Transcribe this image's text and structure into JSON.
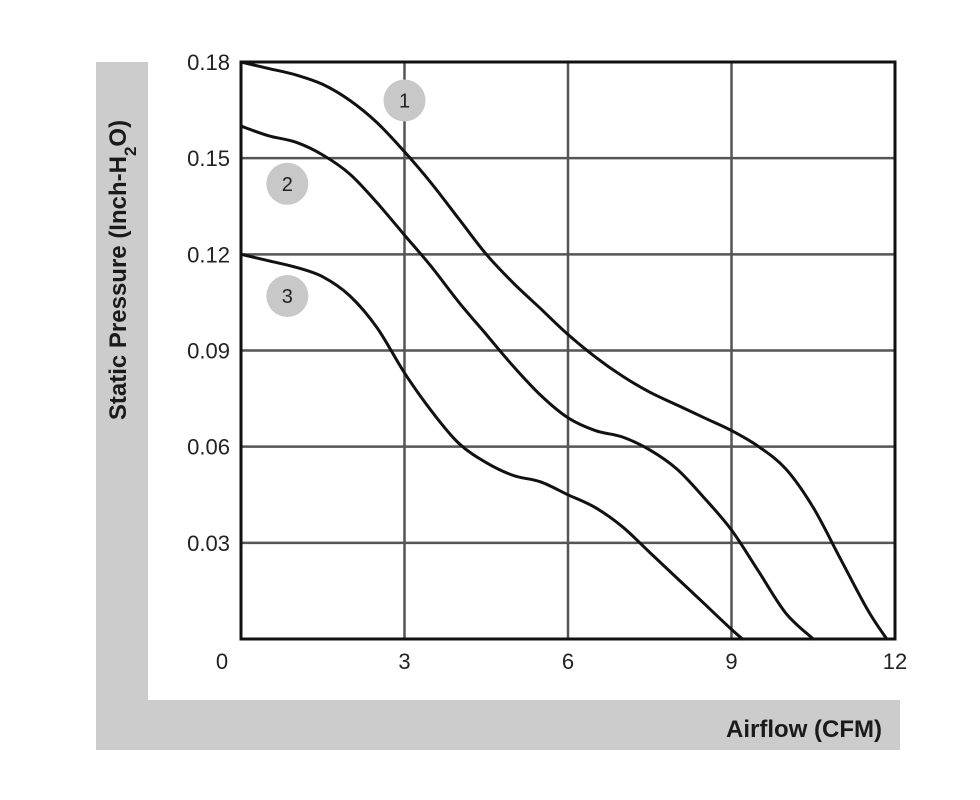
{
  "chart_data": {
    "type": "line",
    "title": "",
    "xlabel": "Airflow (CFM)",
    "ylabel": {
      "prefix": "Static Pressure (Inch-H",
      "sub": "2",
      "suffix": "O)"
    },
    "xlim": [
      0,
      12
    ],
    "ylim": [
      0,
      0.18
    ],
    "x_ticks": [
      "0",
      "3",
      "6",
      "9",
      "12"
    ],
    "y_ticks": [
      "0.03",
      "0.06",
      "0.09",
      "0.12",
      "0.15",
      "0.18"
    ],
    "grid": true,
    "series": [
      {
        "name": "1",
        "x": [
          0,
          0.5,
          1.0,
          1.5,
          2.0,
          2.5,
          3.0,
          3.5,
          4.0,
          4.5,
          5.0,
          5.5,
          6.0,
          6.5,
          7.0,
          7.5,
          8.0,
          8.5,
          9.0,
          9.5,
          10.0,
          10.5,
          11.0,
          11.5,
          11.85
        ],
        "y": [
          0.18,
          0.178,
          0.176,
          0.173,
          0.168,
          0.161,
          0.152,
          0.142,
          0.131,
          0.12,
          0.111,
          0.103,
          0.095,
          0.088,
          0.082,
          0.077,
          0.073,
          0.069,
          0.065,
          0.06,
          0.053,
          0.041,
          0.025,
          0.009,
          0.0
        ]
      },
      {
        "name": "2",
        "x": [
          0,
          0.5,
          1.0,
          1.5,
          2.0,
          2.5,
          3.0,
          3.5,
          4.0,
          4.5,
          5.0,
          5.5,
          6.0,
          6.5,
          7.0,
          7.5,
          8.0,
          8.5,
          9.0,
          9.5,
          10.0,
          10.5
        ],
        "y": [
          0.16,
          0.157,
          0.155,
          0.151,
          0.145,
          0.136,
          0.126,
          0.116,
          0.105,
          0.095,
          0.085,
          0.076,
          0.069,
          0.065,
          0.063,
          0.059,
          0.053,
          0.044,
          0.034,
          0.021,
          0.008,
          0.0
        ]
      },
      {
        "name": "3",
        "x": [
          0,
          0.5,
          1.0,
          1.5,
          2.0,
          2.5,
          3.0,
          3.5,
          4.0,
          4.5,
          5.0,
          5.5,
          6.0,
          6.5,
          7.0,
          7.5,
          8.0,
          8.5,
          9.0,
          9.2
        ],
        "y": [
          0.12,
          0.118,
          0.116,
          0.113,
          0.107,
          0.097,
          0.083,
          0.071,
          0.061,
          0.055,
          0.051,
          0.049,
          0.045,
          0.041,
          0.035,
          0.027,
          0.019,
          0.011,
          0.003,
          0.0
        ]
      }
    ],
    "badges": [
      {
        "label": "1",
        "x": 3.0,
        "y": 0.168
      },
      {
        "label": "2",
        "x": 0.85,
        "y": 0.142
      },
      {
        "label": "3",
        "x": 0.85,
        "y": 0.107
      }
    ],
    "colors": {
      "line": "#111111",
      "grid": "#555555",
      "frame": "#111111",
      "axis_band": "#cccccc",
      "badge": "#c8c8c8"
    }
  }
}
